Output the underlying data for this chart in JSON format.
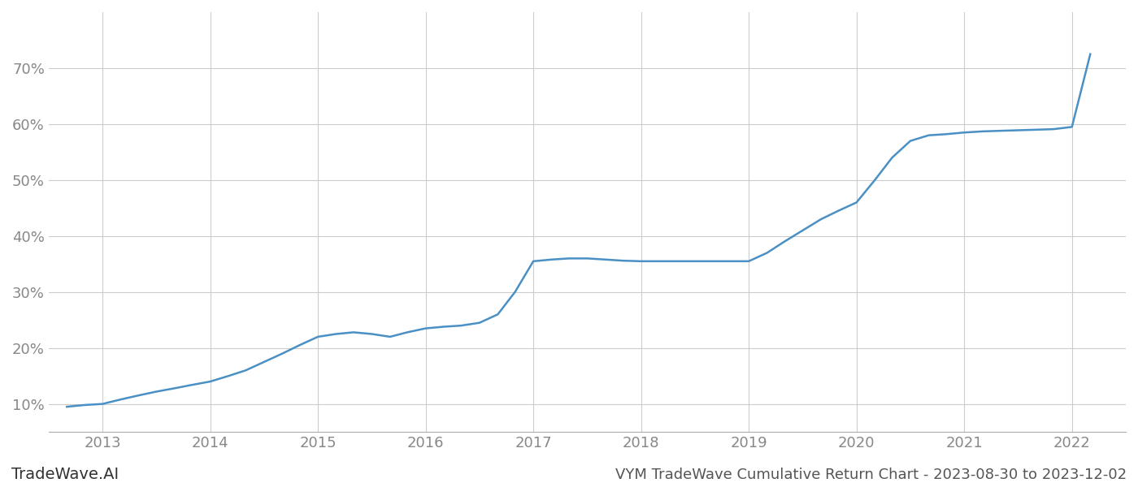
{
  "title": "VYM TradeWave Cumulative Return Chart - 2023-08-30 to 2023-12-02",
  "watermark": "TradeWave.AI",
  "line_color": "#4a90c4",
  "background_color": "#ffffff",
  "grid_color": "#cccccc",
  "x_years": [
    2012.67,
    2012.83,
    2013.0,
    2013.17,
    2013.33,
    2013.5,
    2013.67,
    2013.83,
    2014.0,
    2014.17,
    2014.33,
    2014.5,
    2014.67,
    2014.83,
    2015.0,
    2015.17,
    2015.33,
    2015.5,
    2015.67,
    2015.83,
    2016.0,
    2016.17,
    2016.33,
    2016.5,
    2016.67,
    2016.83,
    2017.0,
    2017.17,
    2017.33,
    2017.5,
    2017.67,
    2017.83,
    2018.0,
    2018.17,
    2018.33,
    2018.5,
    2018.67,
    2018.83,
    2019.0,
    2019.17,
    2019.33,
    2019.5,
    2019.67,
    2019.83,
    2020.0,
    2020.17,
    2020.33,
    2020.5,
    2020.67,
    2020.83,
    2021.0,
    2021.17,
    2021.33,
    2021.5,
    2021.67,
    2021.83,
    2022.0,
    2022.17
  ],
  "y_values": [
    9.5,
    9.8,
    10.0,
    10.8,
    11.5,
    12.2,
    12.8,
    13.4,
    14.0,
    15.0,
    16.0,
    17.5,
    19.0,
    20.5,
    22.0,
    22.5,
    22.8,
    22.5,
    22.0,
    22.8,
    23.5,
    23.8,
    24.0,
    24.5,
    26.0,
    30.0,
    35.5,
    35.8,
    36.0,
    36.0,
    35.8,
    35.6,
    35.5,
    35.5,
    35.5,
    35.5,
    35.5,
    35.5,
    35.5,
    37.0,
    39.0,
    41.0,
    43.0,
    44.5,
    46.0,
    50.0,
    54.0,
    57.0,
    58.0,
    58.2,
    58.5,
    58.7,
    58.8,
    58.9,
    59.0,
    59.1,
    59.5,
    72.5
  ],
  "xlim": [
    2012.5,
    2022.5
  ],
  "ylim": [
    5,
    80
  ],
  "yticks": [
    10,
    20,
    30,
    40,
    50,
    60,
    70
  ],
  "xtick_years": [
    2013,
    2014,
    2015,
    2016,
    2017,
    2018,
    2019,
    2020,
    2021,
    2022
  ],
  "axis_label_color": "#888888",
  "tick_label_fontsize": 13,
  "watermark_fontsize": 14,
  "title_fontsize": 13,
  "line_width": 1.8
}
